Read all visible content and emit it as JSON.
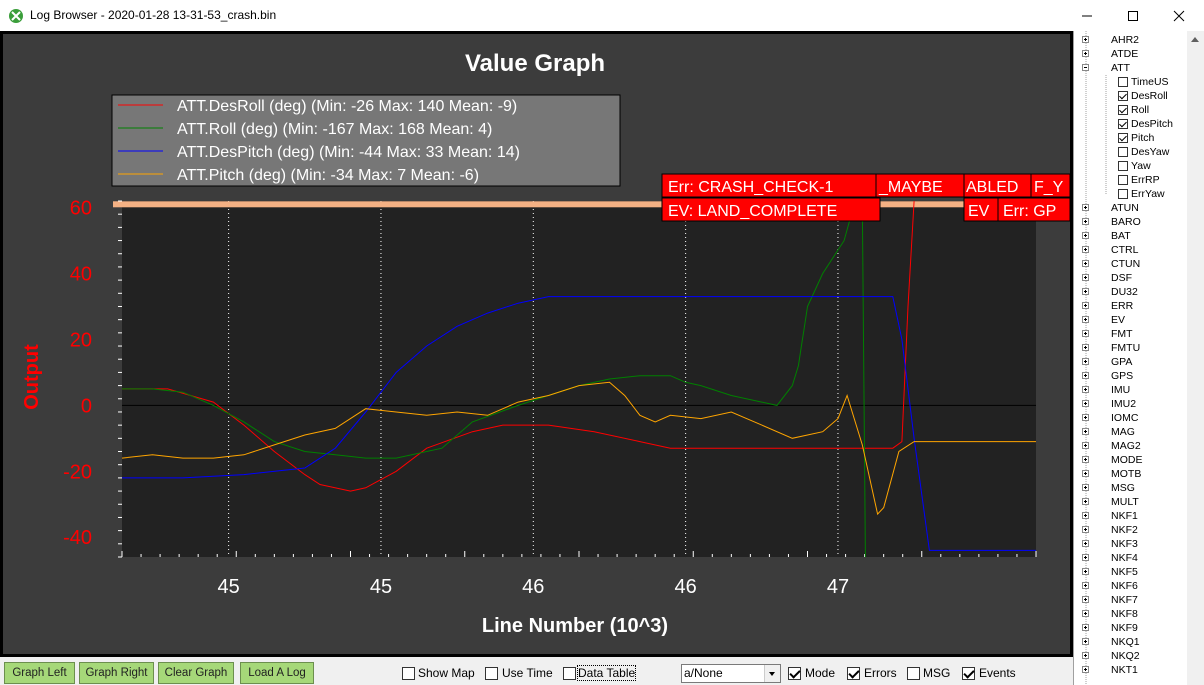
{
  "window": {
    "title": "Log Browser - 2020-01-28 13-31-53_crash.bin"
  },
  "graph": {
    "title": "Value Graph",
    "xlabel": "Line Number (10^3)",
    "ylabel": "Output",
    "legend": [
      {
        "label": "ATT.DesRoll (deg) (Min: -26 Max: 140 Mean: -9)",
        "color": "#ff0000"
      },
      {
        "label": "ATT.Roll (deg) (Min: -167 Max: 168 Mean: 4)",
        "color": "#008000"
      },
      {
        "label": "ATT.DesPitch (deg) (Min: -44 Max: 33 Mean: 14)",
        "color": "#0000ff"
      },
      {
        "label": "ATT.Pitch (deg) (Min: -34 Max: 7 Mean: -6)",
        "color": "#ffa500"
      }
    ],
    "events": [
      "Err: CRASH_CHECK-1",
      "_MAYBE",
      "ABLED",
      "F_Y",
      "EV: LAND_COMPLETE",
      "EV",
      "Err: GP"
    ]
  },
  "chart_data": {
    "type": "line",
    "title": "Value Graph",
    "xlabel": "Line Number (10^3)",
    "ylabel": "Output",
    "x_tick_labels": [
      "45",
      "45",
      "46",
      "46",
      "47"
    ],
    "y_tick_labels": [
      "60",
      "40",
      "20",
      "0",
      "-20",
      "-40"
    ],
    "ylim": [
      -46,
      62
    ],
    "xlim": [
      44.4,
      47.4
    ],
    "x_tick_values": [
      44.75,
      45.25,
      45.75,
      46.25,
      46.75
    ],
    "y_tick_values": [
      60,
      40,
      20,
      0,
      -20,
      -40
    ],
    "grid": "vertical dotted",
    "legend_position": "top-left",
    "series": [
      {
        "name": "ATT.DesRoll (deg) (Min: -26 Max: 140 Mean: -9)",
        "color": "#ff0000",
        "x": [
          44.4,
          44.55,
          44.7,
          44.8,
          44.9,
          45.0,
          45.05,
          45.15,
          45.2,
          45.3,
          45.4,
          45.55,
          45.65,
          45.8,
          45.95,
          46.1,
          46.2,
          46.3,
          46.5,
          46.7,
          46.93,
          46.96,
          46.98,
          47.0
        ],
        "y": [
          5,
          5,
          1,
          -6,
          -14,
          -21,
          -24,
          -26,
          -25,
          -20,
          -13,
          -8,
          -6,
          -6,
          -8,
          -11,
          -13,
          -13,
          -13,
          -13,
          -13,
          -11,
          30,
          62
        ]
      },
      {
        "name": "ATT.Roll (deg) (Min: -167 Max: 168 Mean: 4)",
        "color": "#008000",
        "x": [
          44.4,
          44.5,
          44.6,
          44.7,
          44.8,
          44.9,
          45.0,
          45.1,
          45.2,
          45.3,
          45.45,
          45.55,
          45.7,
          45.8,
          45.9,
          46.0,
          46.1,
          46.2,
          46.25,
          46.3,
          46.4,
          46.5,
          46.55,
          46.6,
          46.62,
          46.63,
          46.64,
          46.65,
          46.7,
          46.77,
          46.8,
          46.82,
          46.83,
          46.84
        ],
        "y": [
          5,
          5,
          4,
          0,
          -5,
          -11,
          -14,
          -15,
          -16,
          -16,
          -13,
          -5,
          0,
          3,
          6,
          8,
          9,
          9,
          7,
          6,
          3,
          1,
          0,
          6,
          12,
          18,
          24,
          30,
          40,
          50,
          60,
          62,
          62,
          -46
        ]
      },
      {
        "name": "ATT.DesPitch (deg) (Min: -44 Max: 33 Mean: 14)",
        "color": "#0000ff",
        "x": [
          44.4,
          44.6,
          44.8,
          45.0,
          45.1,
          45.2,
          45.3,
          45.4,
          45.5,
          45.6,
          45.7,
          45.8,
          45.9,
          46.0,
          46.3,
          46.6,
          46.93,
          46.96,
          47.0,
          47.05,
          47.4
        ],
        "y": [
          -22,
          -22,
          -21,
          -19,
          -13,
          -2,
          10,
          18,
          24,
          28,
          31,
          33,
          33,
          33,
          33,
          33,
          33,
          20,
          -10,
          -44,
          -44
        ]
      },
      {
        "name": "ATT.Pitch (deg) (Min: -34 Max: 7 Mean: -6)",
        "color": "#ffa500",
        "x": [
          44.4,
          44.5,
          44.6,
          44.7,
          44.8,
          44.9,
          45.0,
          45.1,
          45.2,
          45.3,
          45.4,
          45.5,
          45.6,
          45.7,
          45.8,
          45.9,
          46.0,
          46.05,
          46.1,
          46.15,
          46.2,
          46.3,
          46.4,
          46.5,
          46.6,
          46.7,
          46.75,
          46.78,
          46.83,
          46.88,
          46.9,
          46.95,
          47.0,
          47.4
        ],
        "y": [
          -16,
          -15,
          -16,
          -16,
          -15,
          -12,
          -9,
          -7,
          -1,
          -2,
          -3,
          -2,
          -3,
          1,
          3,
          6,
          7,
          3,
          -3,
          -5,
          -3,
          -4,
          -2,
          -6,
          -10,
          -8,
          -4,
          3,
          -12,
          -33,
          -31,
          -14,
          -11,
          -11
        ]
      }
    ],
    "orange_band_y": 61
  },
  "bottom_bar": {
    "buttons": [
      "Graph Left",
      "Graph Right",
      "Clear Graph",
      "Load A Log"
    ],
    "show_map": "Show Map",
    "use_time": "Use Time",
    "data_table": "Data Table",
    "mode_select": "a/None",
    "mode": "Mode",
    "errors": "Errors",
    "msg": "MSG",
    "events": "Events",
    "show_map_checked": false,
    "use_time_checked": false,
    "data_table_checked": false,
    "mode_checked": true,
    "errors_checked": true,
    "msg_checked": false,
    "events_checked": true
  },
  "tree": {
    "top_items": [
      "AHR2",
      "ATDE",
      "ATT"
    ],
    "att_children": [
      {
        "label": "TimeUS",
        "checked": false
      },
      {
        "label": "DesRoll",
        "checked": true
      },
      {
        "label": "Roll",
        "checked": true
      },
      {
        "label": "DesPitch",
        "checked": true
      },
      {
        "label": "Pitch",
        "checked": true
      },
      {
        "label": "DesYaw",
        "checked": false
      },
      {
        "label": "Yaw",
        "checked": false
      },
      {
        "label": "ErrRP",
        "checked": false
      },
      {
        "label": "ErrYaw",
        "checked": false
      }
    ],
    "items": [
      "ATUN",
      "BARO",
      "BAT",
      "CTRL",
      "CTUN",
      "DSF",
      "DU32",
      "ERR",
      "EV",
      "FMT",
      "FMTU",
      "GPA",
      "GPS",
      "IMU",
      "IMU2",
      "IOMC",
      "MAG",
      "MAG2",
      "MODE",
      "MOTB",
      "MSG",
      "MULT",
      "NKF1",
      "NKF2",
      "NKF3",
      "NKF4",
      "NKF5",
      "NKF6",
      "NKF7",
      "NKF8",
      "NKF9",
      "NKQ1",
      "NKQ2",
      "NKT1"
    ]
  }
}
